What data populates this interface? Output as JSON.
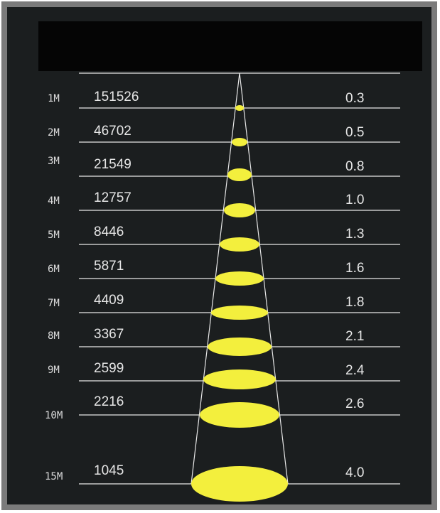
{
  "header": {
    "title": ""
  },
  "beam_rows": [
    {
      "distance": "1M",
      "lux": "151526",
      "diameter": "0.3"
    },
    {
      "distance": "2M",
      "lux": "46702",
      "diameter": "0.5"
    },
    {
      "distance": "3M",
      "lux": "21549",
      "diameter": "0.8"
    },
    {
      "distance": "4M",
      "lux": "12757",
      "diameter": "1.0"
    },
    {
      "distance": "5M",
      "lux": "8446",
      "diameter": "1.3"
    },
    {
      "distance": "6M",
      "lux": "5871",
      "diameter": "1.6"
    },
    {
      "distance": "7M",
      "lux": "4409",
      "diameter": "1.8"
    },
    {
      "distance": "8M",
      "lux": "3367",
      "diameter": "2.1"
    },
    {
      "distance": "9M",
      "lux": "2599",
      "diameter": "2.4"
    },
    {
      "distance": "10M",
      "lux": "2216",
      "diameter": "2.6"
    },
    {
      "distance": "15M",
      "lux": "1045",
      "diameter": "4.0"
    }
  ],
  "colors": {
    "panel": "#1b1e1f",
    "header": "#050505",
    "frame": "#7b7b7b",
    "lines": "#e8e8e8",
    "beam_spot": "#f3ef3d",
    "text": "#e6e6e6"
  }
}
